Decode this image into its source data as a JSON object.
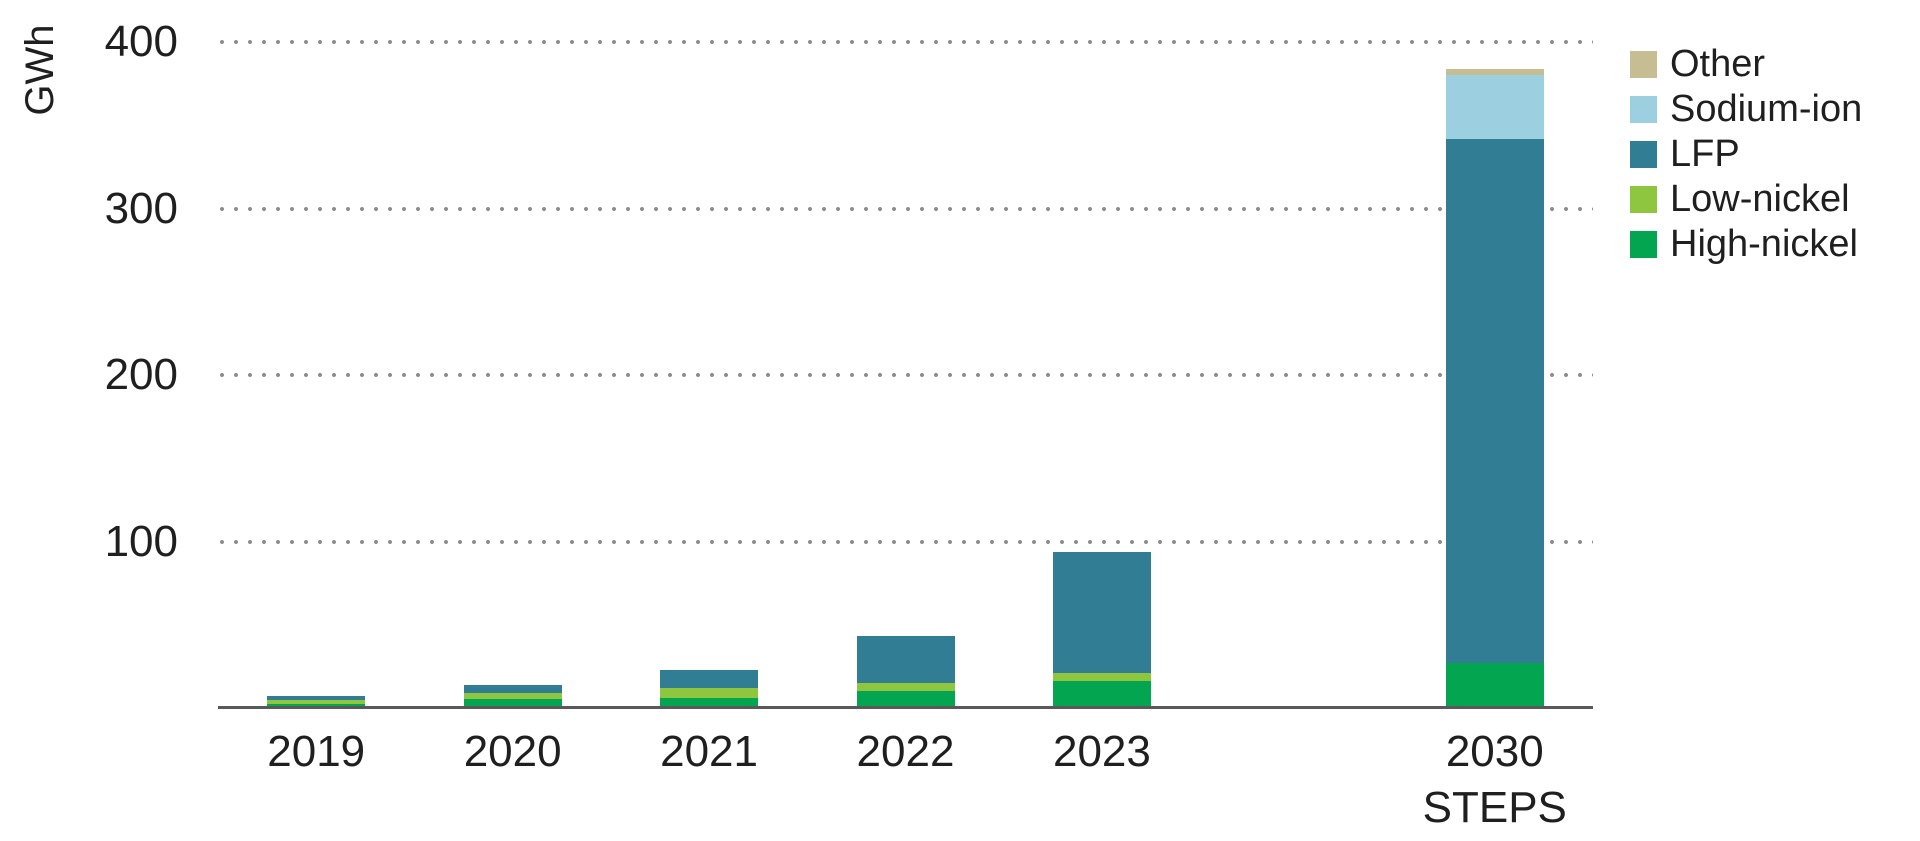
{
  "chart_data": {
    "type": "bar",
    "stacked": true,
    "ylabel": "GWh",
    "ylim": [
      0,
      400
    ],
    "yticks": [
      400,
      300,
      200,
      100
    ],
    "grid": "horizontal-dotted",
    "legend_position": "top-right",
    "legend_order_top_to_bottom": [
      "Other",
      "Sodium-ion",
      "LFP",
      "Low-nickel",
      "High-nickel"
    ],
    "categories": [
      {
        "label": "2019",
        "sublabel": "",
        "slot": 0
      },
      {
        "label": "2020",
        "sublabel": "",
        "slot": 1
      },
      {
        "label": "2021",
        "sublabel": "",
        "slot": 2
      },
      {
        "label": "2022",
        "sublabel": "",
        "slot": 3
      },
      {
        "label": "2023",
        "sublabel": "",
        "slot": 4
      },
      {
        "label": "2030",
        "sublabel": "STEPS",
        "slot": 6
      }
    ],
    "series": [
      {
        "name": "High-nickel",
        "color": "#04a551",
        "values": [
          2.5,
          5.5,
          6,
          10,
          16,
          27
        ]
      },
      {
        "name": "Low-nickel",
        "color": "#8ec63f",
        "values": [
          2.5,
          3.5,
          6,
          5,
          5,
          0
        ]
      },
      {
        "name": "LFP",
        "color": "#317e94",
        "values": [
          2,
          5,
          11,
          28,
          73,
          315
        ]
      },
      {
        "name": "Sodium-ion",
        "color": "#9ccfe0",
        "values": [
          0,
          0,
          0,
          0,
          0,
          38
        ]
      },
      {
        "name": "Other",
        "color": "#c6bd92",
        "values": [
          0,
          0,
          0,
          0,
          0,
          4
        ]
      }
    ]
  },
  "colors": {
    "axis_line": "#595959",
    "gridline_dots": "#8c8c8c",
    "text": "#1f1f1f",
    "background": "#ffffff"
  }
}
